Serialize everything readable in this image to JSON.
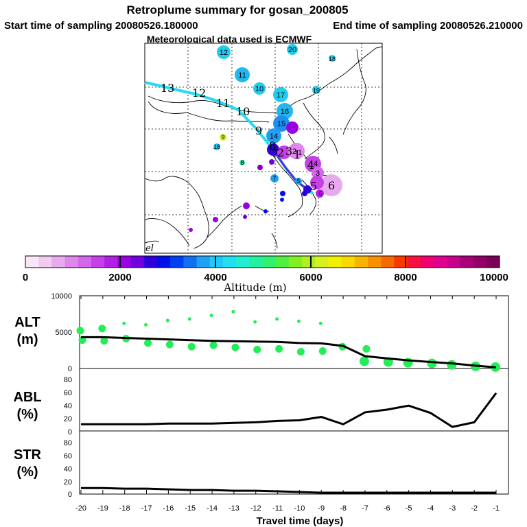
{
  "header": {
    "title": "Retroplume summary for gosan_200805",
    "start_time": "Start time of sampling 20080526.180000",
    "end_time": "End time of sampling 20080526.210000",
    "met_data": "Meteorological data used is ECMWF"
  },
  "colorbar": {
    "tick_labels": [
      "0",
      "2000",
      "4000",
      "6000",
      "8000",
      "10000"
    ],
    "label": "Altitude (m)",
    "colors": [
      "#f7e6f7",
      "#f0ccf0",
      "#e8aaef",
      "#df88ec",
      "#d466ea",
      "#c640e8",
      "#b020e6",
      "#9a00e4",
      "#7000e0",
      "#3000dc",
      "#0010e8",
      "#0040f0",
      "#1070f0",
      "#20a0f4",
      "#20c8f4",
      "#20e0f0",
      "#20f0d0",
      "#20f0a0",
      "#30f070",
      "#50f040",
      "#80f020",
      "#b0f020",
      "#d8f020",
      "#f0f000",
      "#f8d800",
      "#f8b400",
      "#f89000",
      "#f86800",
      "#f83800",
      "#f81040",
      "#f00070",
      "#e00090",
      "#c8008c",
      "#a80078",
      "#900068",
      "#780058"
    ]
  },
  "map": {
    "trajectory_labels": [
      "13",
      "12",
      "11",
      "10",
      "9",
      "8",
      "7",
      "6",
      "5",
      "4",
      "3",
      "2",
      "1"
    ],
    "source_label": "el",
    "cluster_labels": [
      "12",
      "20",
      "18",
      "11",
      "10",
      "17",
      "19",
      "16",
      "15",
      "14",
      "9",
      "18",
      "8",
      "6",
      "7",
      "5",
      "4",
      "3",
      "2",
      "1",
      "6"
    ]
  },
  "chart_data": [
    {
      "type": "line",
      "panel": "ALT",
      "ylabel": "ALT (m)",
      "ylim": [
        0,
        10000
      ],
      "y_ticks": [
        "10000",
        "5000",
        "0"
      ],
      "x": [
        -20,
        -19,
        -18,
        -17,
        -16,
        -15,
        -14,
        -13,
        -12,
        -11,
        -10,
        -9,
        -8,
        -7,
        -6,
        -5,
        -4,
        -3,
        -2,
        -1
      ],
      "values": [
        4300,
        4300,
        4200,
        4100,
        4000,
        3900,
        3800,
        3750,
        3700,
        3650,
        3500,
        3450,
        3100,
        1700,
        1400,
        1100,
        900,
        700,
        400,
        150
      ],
      "scatter": {
        "x": [
          -20,
          -20,
          -19,
          -19,
          -18,
          -18,
          -17,
          -17,
          -16,
          -16,
          -15,
          -15,
          -14,
          -14,
          -13,
          -13,
          -12,
          -12,
          -11,
          -11,
          -10,
          -10,
          -9,
          -9,
          -8,
          -7,
          -7,
          -6,
          -5,
          -4,
          -3,
          -2,
          -1
        ],
        "y": [
          5200,
          3900,
          5500,
          3800,
          6200,
          4100,
          6000,
          3500,
          6600,
          3300,
          6800,
          3000,
          7300,
          3200,
          7800,
          2900,
          6400,
          2600,
          6800,
          2700,
          6500,
          2300,
          6200,
          2400,
          3000,
          2700,
          1000,
          900,
          800,
          700,
          500,
          300,
          200
        ]
      }
    },
    {
      "type": "line",
      "panel": "ABL",
      "ylabel": "ABL (%)",
      "ylim": [
        0,
        90
      ],
      "y_ticks": [
        "80",
        "60",
        "40",
        "20",
        "0"
      ],
      "x": [
        -20,
        -19,
        -18,
        -17,
        -16,
        -15,
        -14,
        -13,
        -12,
        -11,
        -10,
        -9,
        -8,
        -7,
        -6,
        -5,
        -4,
        -3,
        -2,
        -1
      ],
      "values": [
        8,
        8,
        8,
        8,
        9,
        9,
        9,
        10,
        11,
        13,
        14,
        19,
        8,
        26,
        30,
        36,
        25,
        4,
        11,
        55
      ]
    },
    {
      "type": "line",
      "panel": "STR",
      "ylabel": "STR (%)",
      "ylim": [
        0,
        90
      ],
      "y_ticks": [
        "80",
        "60",
        "40",
        "20",
        "0"
      ],
      "x": [
        -20,
        -19,
        -18,
        -17,
        -16,
        -15,
        -14,
        -13,
        -12,
        -11,
        -10,
        -9,
        -8,
        -7,
        -6,
        -5,
        -4,
        -3,
        -2,
        -1
      ],
      "values": [
        7,
        7,
        6,
        6,
        5,
        4,
        4,
        3,
        3,
        2,
        1,
        0,
        0,
        0,
        0,
        0,
        0,
        0,
        0,
        0
      ]
    }
  ],
  "x_axis": {
    "tick_labels": [
      "-20",
      "-19",
      "-18",
      "-17",
      "-16",
      "-15",
      "-14",
      "-13",
      "-12",
      "-11",
      "-10",
      "-9",
      "-8",
      "-7",
      "-6",
      "-5",
      "-4",
      "-3",
      "-2",
      "-1"
    ],
    "label": "Travel time (days)"
  },
  "panel_labels": {
    "alt": "ALT",
    "alt_unit": "(m)",
    "abl": "ABL",
    "abl_unit": "(%)",
    "str": "STR",
    "str_unit": "(%)"
  },
  "colors": {
    "line": "#000000",
    "scatter": "#22ee55",
    "trajectory": "#22ddee"
  }
}
